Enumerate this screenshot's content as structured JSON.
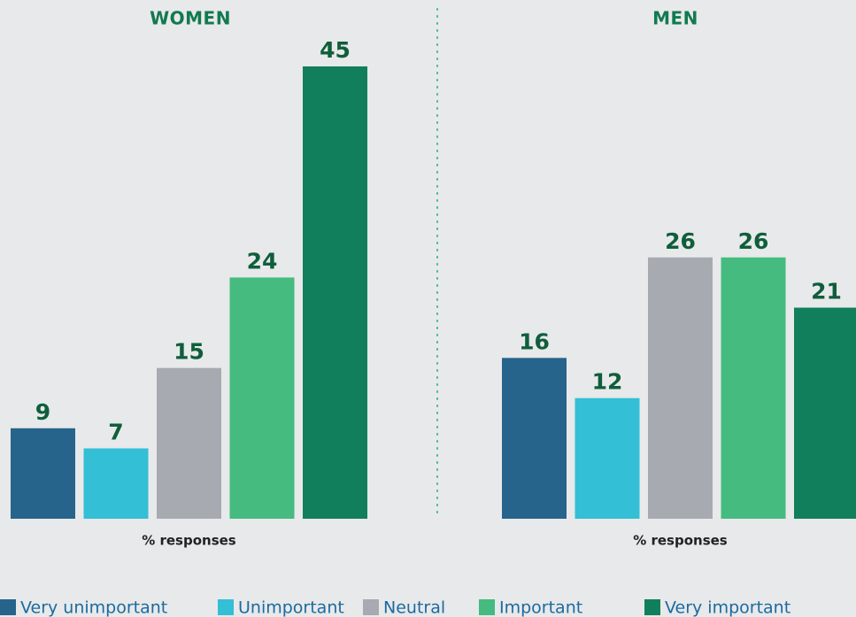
{
  "chart_data": [
    {
      "type": "bar",
      "title": "WOMEN",
      "x_label": "% responses",
      "values": [
        9,
        7,
        15,
        24,
        45
      ]
    },
    {
      "type": "bar",
      "title": "MEN",
      "x_label": "% responses",
      "values": [
        16,
        12,
        26,
        26,
        21
      ]
    }
  ],
  "legend": {
    "items": [
      {
        "name": "Very unimportant",
        "color": "#26648c"
      },
      {
        "name": "Unimportant",
        "color": "#33bfd6"
      },
      {
        "name": "Neutral",
        "color": "#a7abb1"
      },
      {
        "name": "Important",
        "color": "#45bb80"
      },
      {
        "name": "Very important",
        "color": "#117f5c"
      }
    ]
  }
}
